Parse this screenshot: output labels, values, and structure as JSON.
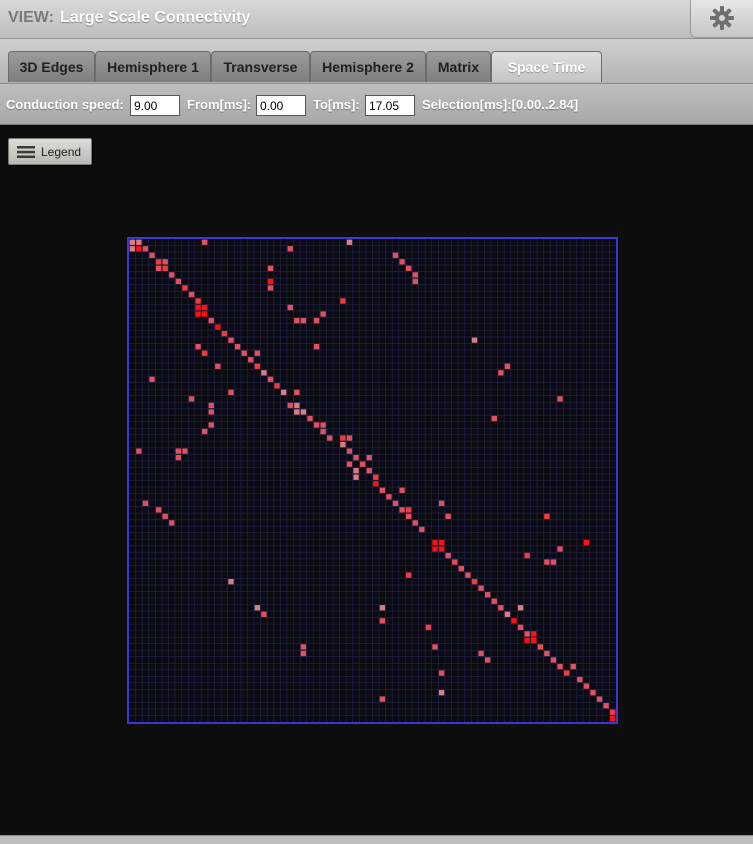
{
  "view": {
    "prefix": "VIEW:",
    "title": "Large Scale Connectivity",
    "settings_icon": "gear-icon"
  },
  "tabs": [
    {
      "label": "3D Edges",
      "active": false
    },
    {
      "label": "Hemisphere 1",
      "active": false
    },
    {
      "label": "Transverse",
      "active": false
    },
    {
      "label": "Hemisphere 2",
      "active": false
    },
    {
      "label": "Matrix",
      "active": false
    },
    {
      "label": "Space Time",
      "active": true
    }
  ],
  "controls": {
    "conduction_label": "Conduction speed:",
    "conduction_value": "9.00",
    "from_label": "From[ms]:",
    "from_value": "0.00",
    "to_label": "To[ms]:",
    "to_value": "17.05",
    "selection_label": "Selection[ms]:[0.00..2.84]"
  },
  "legend": {
    "label": "Legend",
    "icon": "menu-icon"
  },
  "matrix": {
    "size": 74,
    "border_color": "#3b36d6",
    "grid_color": "#25264a",
    "background": "#0a0a12",
    "cell_colors": [
      "#f03c3c",
      "#e05060",
      "#d87c86",
      "#ff1010"
    ],
    "cells": [
      [
        0,
        0,
        2
      ],
      [
        0,
        1,
        2
      ],
      [
        1,
        0,
        2
      ],
      [
        1,
        1,
        3
      ],
      [
        0,
        11,
        1
      ],
      [
        1,
        2,
        1
      ],
      [
        2,
        3,
        1
      ],
      [
        3,
        4,
        0
      ],
      [
        3,
        5,
        1
      ],
      [
        4,
        4,
        1
      ],
      [
        4,
        5,
        0
      ],
      [
        5,
        6,
        1
      ],
      [
        6,
        7,
        1
      ],
      [
        7,
        8,
        0
      ],
      [
        8,
        9,
        1
      ],
      [
        9,
        10,
        0
      ],
      [
        10,
        10,
        3
      ],
      [
        10,
        11,
        3
      ],
      [
        11,
        10,
        3
      ],
      [
        11,
        11,
        3
      ],
      [
        12,
        12,
        1
      ],
      [
        13,
        13,
        3
      ],
      [
        14,
        14,
        0
      ],
      [
        15,
        15,
        1
      ],
      [
        16,
        16,
        1
      ],
      [
        17,
        17,
        1
      ],
      [
        17,
        19,
        1
      ],
      [
        18,
        18,
        1
      ],
      [
        19,
        19,
        0
      ],
      [
        20,
        20,
        2
      ],
      [
        21,
        21,
        1
      ],
      [
        22,
        22,
        0
      ],
      [
        23,
        23,
        2
      ],
      [
        23,
        25,
        1
      ],
      [
        25,
        24,
        1
      ],
      [
        25,
        25,
        2
      ],
      [
        26,
        26,
        2
      ],
      [
        26,
        25,
        2
      ],
      [
        27,
        27,
        1
      ],
      [
        28,
        28,
        1
      ],
      [
        29,
        29,
        1
      ],
      [
        30,
        30,
        1
      ],
      [
        30,
        33,
        1
      ],
      [
        31,
        32,
        2
      ],
      [
        32,
        33,
        1
      ],
      [
        33,
        34,
        1
      ],
      [
        33,
        36,
        1
      ],
      [
        34,
        35,
        1
      ],
      [
        35,
        36,
        1
      ],
      [
        36,
        37,
        0
      ],
      [
        37,
        37,
        3
      ],
      [
        38,
        38,
        1
      ],
      [
        39,
        39,
        1
      ],
      [
        40,
        40,
        1
      ],
      [
        41,
        41,
        1
      ],
      [
        41,
        42,
        0
      ],
      [
        42,
        42,
        1
      ],
      [
        43,
        43,
        1
      ],
      [
        44,
        44,
        1
      ],
      [
        46,
        47,
        3
      ],
      [
        47,
        46,
        3
      ],
      [
        46,
        46,
        3
      ],
      [
        47,
        47,
        3
      ],
      [
        48,
        48,
        1
      ],
      [
        49,
        49,
        1
      ],
      [
        50,
        50,
        1
      ],
      [
        51,
        51,
        1
      ],
      [
        52,
        52,
        0
      ],
      [
        53,
        53,
        1
      ],
      [
        54,
        54,
        1
      ],
      [
        55,
        55,
        1
      ],
      [
        56,
        56,
        1
      ],
      [
        57,
        57,
        2
      ],
      [
        58,
        58,
        3
      ],
      [
        59,
        59,
        1
      ],
      [
        60,
        60,
        1
      ],
      [
        61,
        61,
        1
      ],
      [
        62,
        62,
        1
      ],
      [
        63,
        63,
        1
      ],
      [
        64,
        64,
        1
      ],
      [
        65,
        65,
        1
      ],
      [
        65,
        67,
        1
      ],
      [
        66,
        66,
        0
      ],
      [
        67,
        68,
        1
      ],
      [
        68,
        69,
        1
      ],
      [
        69,
        70,
        1
      ],
      [
        70,
        71,
        1
      ],
      [
        71,
        72,
        1
      ],
      [
        72,
        73,
        0
      ],
      [
        73,
        73,
        3
      ],
      [
        60,
        61,
        3
      ],
      [
        61,
        60,
        3
      ],
      [
        61,
        61,
        3
      ],
      [
        56,
        59,
        2
      ],
      [
        51,
        42,
        0
      ],
      [
        56,
        38,
        2
      ],
      [
        59,
        45,
        0
      ],
      [
        62,
        46,
        1
      ],
      [
        64,
        54,
        1
      ],
      [
        66,
        47,
        1
      ],
      [
        63,
        53,
        1
      ],
      [
        69,
        47,
        2
      ],
      [
        70,
        38,
        1
      ],
      [
        63,
        26,
        1
      ],
      [
        58,
        38,
        1
      ],
      [
        4,
        21,
        1
      ],
      [
        6,
        21,
        3
      ],
      [
        7,
        21,
        1
      ],
      [
        10,
        24,
        1
      ],
      [
        9,
        32,
        0
      ],
      [
        12,
        25,
        1
      ],
      [
        12,
        26,
        1
      ],
      [
        12,
        28,
        1
      ],
      [
        11,
        29,
        1
      ],
      [
        16,
        28,
        1
      ],
      [
        15,
        52,
        2
      ],
      [
        19,
        57,
        1
      ],
      [
        20,
        56,
        1
      ],
      [
        24,
        65,
        1
      ],
      [
        27,
        55,
        1
      ],
      [
        3,
        41,
        1
      ],
      [
        4,
        42,
        1
      ],
      [
        5,
        43,
        1
      ],
      [
        6,
        43,
        1
      ],
      [
        2,
        40,
        1
      ],
      [
        0,
        33,
        2
      ],
      [
        1,
        24,
        1
      ],
      [
        42,
        63,
        0
      ],
      [
        48,
        60,
        0
      ],
      [
        46,
        69,
        3
      ],
      [
        49,
        64,
        1
      ],
      [
        49,
        63,
        1
      ],
      [
        47,
        65,
        1
      ],
      [
        28,
        29,
        1
      ],
      [
        30,
        32,
        0
      ],
      [
        21,
        3,
        1
      ],
      [
        24,
        9,
        1
      ],
      [
        23,
        15,
        1
      ],
      [
        25,
        12,
        1
      ],
      [
        26,
        12,
        1
      ],
      [
        29,
        11,
        1
      ],
      [
        28,
        12,
        1
      ],
      [
        32,
        1,
        1
      ],
      [
        32,
        7,
        1
      ],
      [
        32,
        8,
        1
      ],
      [
        33,
        7,
        1
      ],
      [
        40,
        2,
        1
      ],
      [
        41,
        4,
        1
      ],
      [
        42,
        5,
        1
      ],
      [
        43,
        6,
        1
      ],
      [
        52,
        15,
        2
      ],
      [
        56,
        19,
        2
      ],
      [
        57,
        20,
        1
      ],
      [
        62,
        26,
        1
      ],
      [
        38,
        41,
        1
      ],
      [
        40,
        47,
        1
      ],
      [
        42,
        48,
        1
      ],
      [
        36,
        34,
        2
      ],
      [
        35,
        34,
        2
      ],
      [
        34,
        33,
        1
      ],
      [
        16,
        10,
        1
      ],
      [
        17,
        11,
        0
      ],
      [
        19,
        13,
        1
      ]
    ]
  }
}
